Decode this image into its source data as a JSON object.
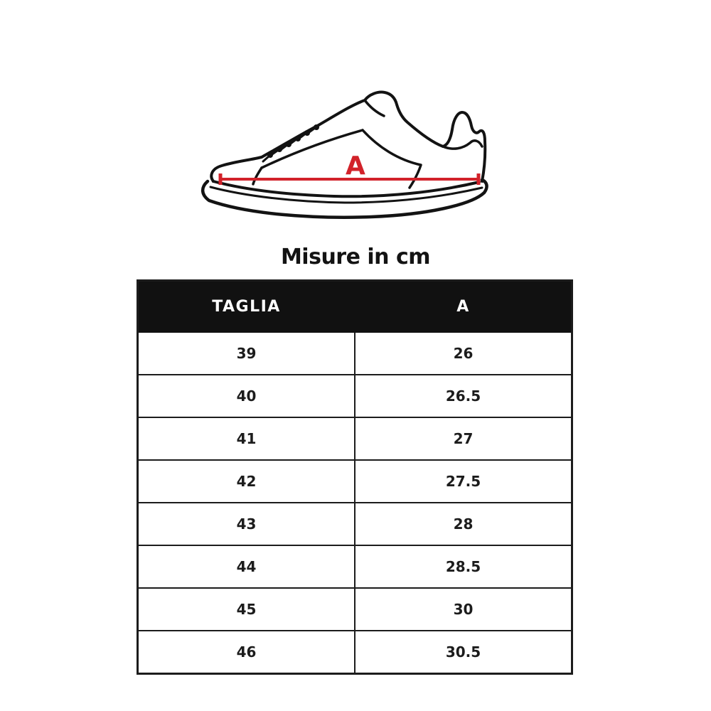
{
  "title": "Misure in cm",
  "figure": {
    "measure_label": "A",
    "accent_color": "#d2222a",
    "outline_color": "#131313"
  },
  "table": {
    "headers": [
      "TAGLIA",
      "A"
    ],
    "rows": [
      [
        "39",
        "26"
      ],
      [
        "40",
        "26.5"
      ],
      [
        "41",
        "27"
      ],
      [
        "42",
        "27.5"
      ],
      [
        "43",
        "28"
      ],
      [
        "44",
        "28.5"
      ],
      [
        "45",
        "30"
      ],
      [
        "46",
        "30.5"
      ]
    ],
    "header_bg": "#111111",
    "header_text_color": "#ffffff",
    "border_color": "#1c1c1c"
  },
  "chart_data": {
    "type": "table",
    "title": "Misure in cm",
    "columns": [
      "TAGLIA",
      "A"
    ],
    "rows": [
      [
        39,
        26
      ],
      [
        40,
        26.5
      ],
      [
        41,
        27
      ],
      [
        42,
        27.5
      ],
      [
        43,
        28
      ],
      [
        44,
        28.5
      ],
      [
        45,
        30
      ],
      [
        46,
        30.5
      ]
    ],
    "units": "cm",
    "measure_label": "A"
  }
}
